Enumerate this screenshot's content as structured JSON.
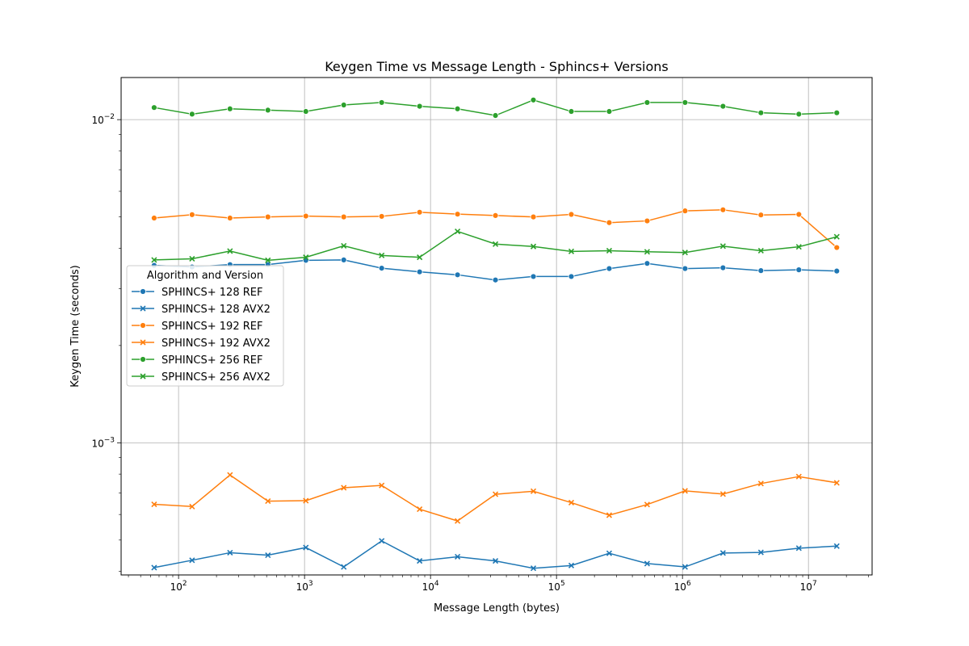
{
  "chart_data": {
    "type": "line",
    "title": "Keygen Time vs Message Length - Sphincs+ Versions",
    "xlabel": "Message Length (bytes)",
    "ylabel": "Keygen Time (seconds)",
    "xscale": "log",
    "yscale": "log",
    "xlim": [
      35,
      32000000
    ],
    "ylim": [
      0.00039,
      0.0135
    ],
    "x_ticks": [
      {
        "value": 100,
        "base": "10",
        "exp": "2"
      },
      {
        "value": 1000,
        "base": "10",
        "exp": "3"
      },
      {
        "value": 10000,
        "base": "10",
        "exp": "4"
      },
      {
        "value": 100000,
        "base": "10",
        "exp": "5"
      },
      {
        "value": 1000000,
        "base": "10",
        "exp": "6"
      },
      {
        "value": 10000000,
        "base": "10",
        "exp": "7"
      }
    ],
    "y_ticks": [
      {
        "value": 0.001,
        "base": "10",
        "exp": "−3"
      },
      {
        "value": 0.01,
        "base": "10",
        "exp": "−2"
      }
    ],
    "grid": true,
    "legend": {
      "title": "Algorithm and Version",
      "placement": "center-left"
    },
    "x": [
      64,
      128,
      256,
      512,
      1024,
      2048,
      4096,
      8192,
      16384,
      32768,
      65536,
      131072,
      262144,
      524288,
      1048576,
      2097152,
      4194304,
      8388608,
      16777216
    ],
    "series": [
      {
        "name": "SPHINCS+ 128 REF",
        "color": "#1f77b4",
        "marker": "circle",
        "values": [
          0.00354,
          0.0035,
          0.00356,
          0.00356,
          0.00367,
          0.00368,
          0.00347,
          0.00338,
          0.00331,
          0.00319,
          0.00327,
          0.00327,
          0.00346,
          0.00359,
          0.00346,
          0.00348,
          0.00341,
          0.00343,
          0.0034
        ]
      },
      {
        "name": "SPHINCS+ 128 AVX2",
        "color": "#1f77b4",
        "marker": "x",
        "values": [
          0.000411,
          0.000433,
          0.000457,
          0.000449,
          0.000474,
          0.000413,
          0.000497,
          0.000431,
          0.000444,
          0.000431,
          0.000409,
          0.000417,
          0.000455,
          0.000423,
          0.000413,
          0.000456,
          0.000458,
          0.000472,
          0.000479
        ]
      },
      {
        "name": "SPHINCS+ 192 REF",
        "color": "#ff7f0e",
        "marker": "circle",
        "values": [
          0.00496,
          0.00508,
          0.00496,
          0.005,
          0.00503,
          0.005,
          0.00502,
          0.00517,
          0.0051,
          0.00505,
          0.005,
          0.00509,
          0.0048,
          0.00486,
          0.00522,
          0.00526,
          0.00507,
          0.00509,
          0.00402
        ]
      },
      {
        "name": "SPHINCS+ 192 AVX2",
        "color": "#ff7f0e",
        "marker": "x",
        "values": [
          0.000645,
          0.000635,
          0.000795,
          0.00066,
          0.000662,
          0.000726,
          0.000738,
          0.000623,
          0.000573,
          0.000693,
          0.000708,
          0.000653,
          0.000597,
          0.000644,
          0.00071,
          0.000694,
          0.000748,
          0.000786,
          0.000752
        ]
      },
      {
        "name": "SPHINCS+ 256 REF",
        "color": "#2ca02c",
        "marker": "circle",
        "values": [
          0.0109,
          0.0104,
          0.0108,
          0.0107,
          0.0106,
          0.0111,
          0.0113,
          0.011,
          0.0108,
          0.0103,
          0.0115,
          0.0106,
          0.0106,
          0.0113,
          0.0113,
          0.011,
          0.0105,
          0.0104,
          0.0105
        ]
      },
      {
        "name": "SPHINCS+ 256 AVX2",
        "color": "#2ca02c",
        "marker": "x",
        "values": [
          0.00368,
          0.00371,
          0.00392,
          0.00367,
          0.00375,
          0.00407,
          0.0038,
          0.00375,
          0.00451,
          0.00412,
          0.00405,
          0.00391,
          0.00393,
          0.0039,
          0.00388,
          0.00406,
          0.00393,
          0.00404,
          0.00434
        ]
      }
    ]
  }
}
